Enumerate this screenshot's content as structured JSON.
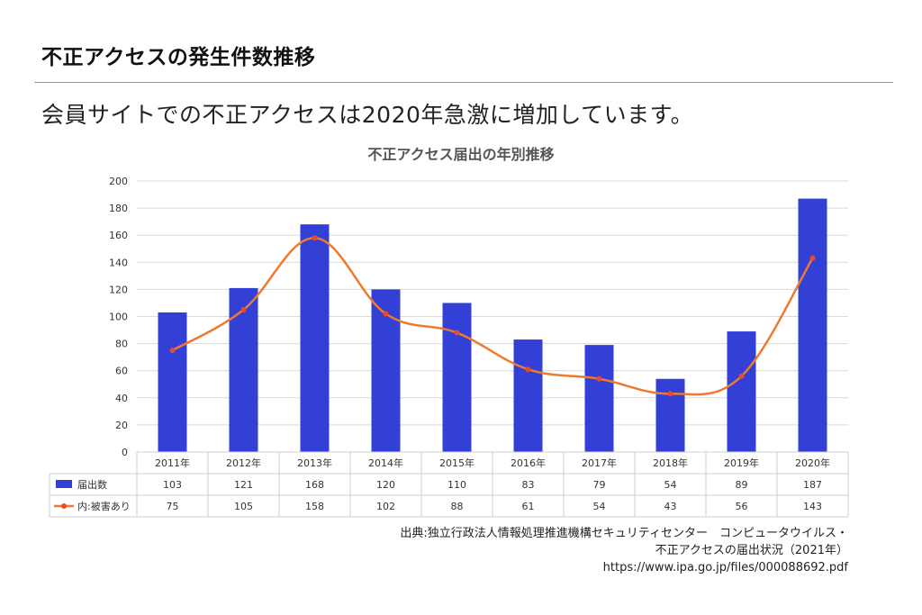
{
  "page": {
    "title": "不正アクセスの発生件数推移",
    "subtitle": "会員サイトでの不正アクセスは2020年急激に増加しています。"
  },
  "colors": {
    "bar": "#3340d6",
    "line": "#ee7a30",
    "marker": "#e84b2a",
    "rule": "#8a8fd0"
  },
  "chart_data": {
    "type": "bar",
    "title": "不正アクセス届出の年別推移",
    "categories": [
      "2011年",
      "2012年",
      "2013年",
      "2014年",
      "2015年",
      "2016年",
      "2017年",
      "2018年",
      "2019年",
      "2020年"
    ],
    "series": [
      {
        "name": "届出数",
        "type": "bar",
        "values": [
          103,
          121,
          168,
          120,
          110,
          83,
          79,
          54,
          89,
          187
        ]
      },
      {
        "name": "内:被害あり",
        "type": "line",
        "values": [
          75,
          105,
          158,
          102,
          88,
          61,
          54,
          43,
          56,
          143
        ]
      }
    ],
    "ylim": [
      0,
      200
    ],
    "yticks": [
      0,
      20,
      40,
      60,
      80,
      100,
      120,
      140,
      160,
      180,
      200
    ],
    "grid": true,
    "legend": "data-table"
  },
  "source": {
    "line1": "出典:独立行政法人情報処理推進機構セキュリティセンター　コンピュータウイルス・",
    "line2": "不正アクセスの届出状況（2021年）",
    "line3": "https://www.ipa.go.jp/files/000088692.pdf"
  }
}
